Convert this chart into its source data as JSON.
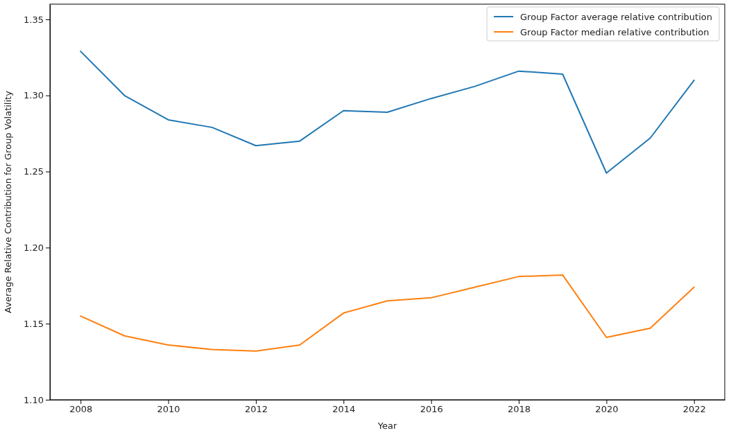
{
  "chart_data": {
    "type": "line",
    "xlabel": "Year",
    "ylabel": "Average Relative Contribution for Group Volatility",
    "x": [
      2008,
      2009,
      2010,
      2011,
      2012,
      2013,
      2014,
      2015,
      2016,
      2017,
      2018,
      2019,
      2020,
      2021,
      2022
    ],
    "series": [
      {
        "name": "Group Factor average relative contribution",
        "color": "#1f77b4",
        "values": [
          1.329,
          1.3,
          1.284,
          1.279,
          1.267,
          1.27,
          1.29,
          1.289,
          1.298,
          1.306,
          1.316,
          1.314,
          1.249,
          1.272,
          1.31
        ]
      },
      {
        "name": "Group Factor median relative contribution",
        "color": "#ff7f0e",
        "values": [
          1.155,
          1.142,
          1.136,
          1.133,
          1.132,
          1.136,
          1.157,
          1.165,
          1.167,
          1.174,
          1.181,
          1.182,
          1.141,
          1.147,
          1.174
        ]
      }
    ],
    "xlim": [
      2007.3,
      2022.7
    ],
    "xticks": [
      2008,
      2010,
      2012,
      2014,
      2016,
      2018,
      2020,
      2022
    ],
    "ylim": [
      1.1,
      1.36
    ],
    "yticks": [
      {
        "value": 1.1,
        "label": "1.10"
      },
      {
        "value": 1.15,
        "label": "1.15"
      },
      {
        "value": 1.2,
        "label": "1.20"
      },
      {
        "value": 1.25,
        "label": "1.25"
      },
      {
        "value": 1.3,
        "label": "1.30"
      },
      {
        "value": 1.35,
        "label": "1.35"
      }
    ],
    "legend": "top right",
    "marker": "none",
    "line_style": "solid"
  }
}
